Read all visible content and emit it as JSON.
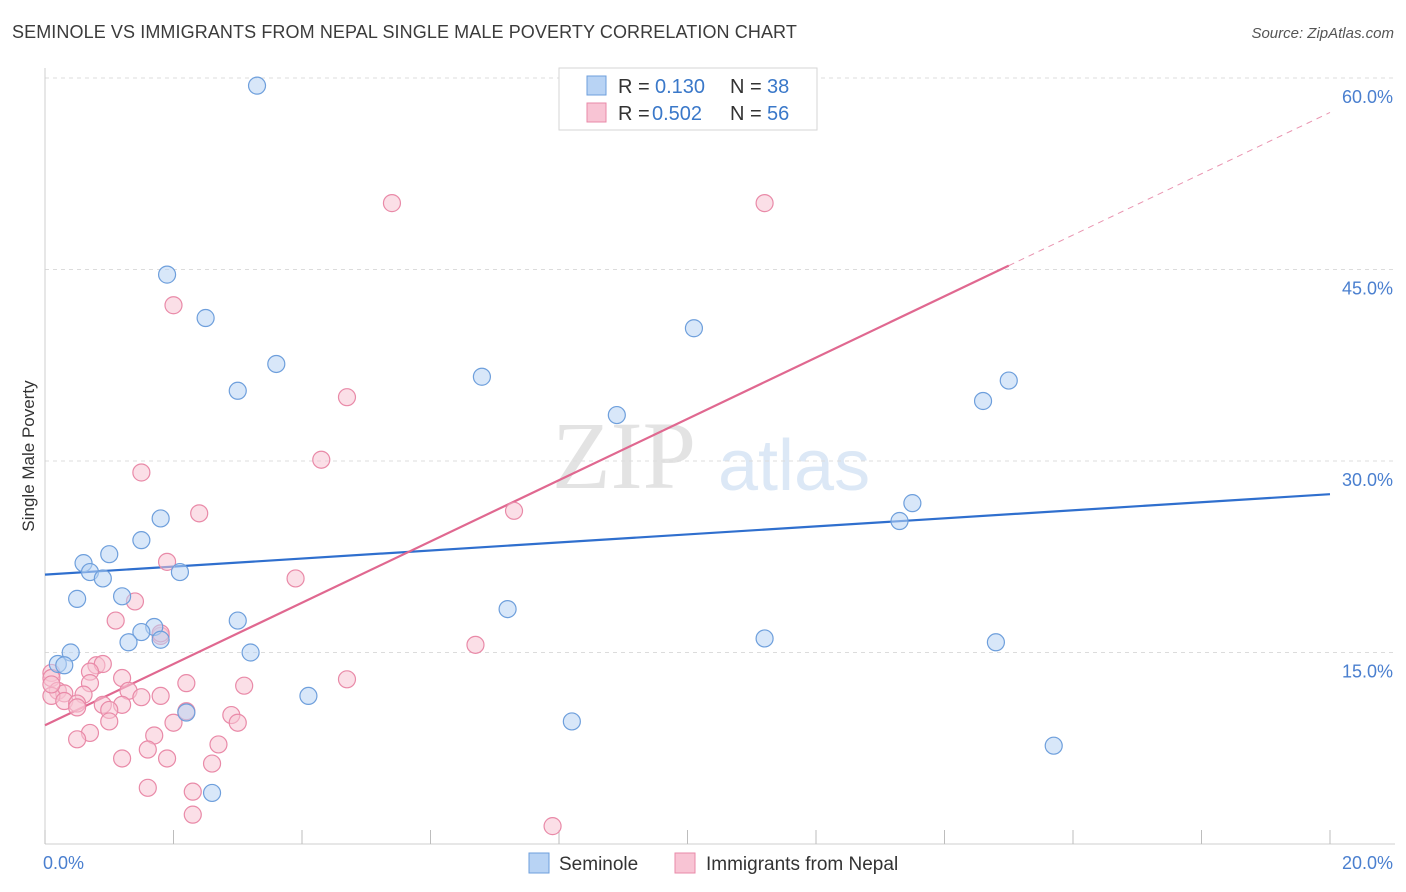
{
  "title": "SEMINOLE VS IMMIGRANTS FROM NEPAL SINGLE MALE POVERTY CORRELATION CHART",
  "source": "Source: ZipAtlas.com",
  "watermark": {
    "part1": "ZIP",
    "part2": "atlas"
  },
  "colors": {
    "seminole_fill": "#b8d3f4",
    "seminole_stroke": "#6e9fdc",
    "seminole_line": "#2f6fce",
    "nepal_fill": "#f8c4d4",
    "nepal_stroke": "#e98aa8",
    "nepal_line": "#e06890",
    "axis_tick": "#4a7fcf",
    "grid": "#dcdcdc"
  },
  "legend": {
    "rows": [
      {
        "r_label": "R =",
        "r_value": "0.130",
        "n_label": "N =",
        "n_value": "38"
      },
      {
        "r_label": "R =",
        "r_value": "0.502",
        "n_label": "N =",
        "n_value": "56"
      }
    ],
    "bottom": [
      "Seminole",
      "Immigrants from Nepal"
    ]
  },
  "chart_data": {
    "type": "scatter",
    "title": "SEMINOLE VS IMMIGRANTS FROM NEPAL SINGLE MALE POVERTY CORRELATION CHART",
    "xlabel": "",
    "ylabel": "Single Male Poverty",
    "xlim": [
      0,
      20
    ],
    "ylim": [
      0,
      60
    ],
    "x_tick_labels": [
      "0.0%",
      "20.0%"
    ],
    "y_ticks": [
      15,
      30,
      45,
      60
    ],
    "y_tick_labels": [
      "15.0%",
      "30.0%",
      "45.0%",
      "60.0%"
    ],
    "grid": true,
    "legend_position": "top-center",
    "series": [
      {
        "name": "Seminole",
        "r": 0.13,
        "n": 38,
        "trend": {
          "x": [
            0,
            20
          ],
          "y": [
            21.1,
            27.4
          ]
        },
        "points": [
          [
            3.3,
            59.4
          ],
          [
            1.9,
            44.6
          ],
          [
            2.5,
            41.2
          ],
          [
            3.6,
            37.6
          ],
          [
            3.0,
            35.5
          ],
          [
            6.8,
            36.6
          ],
          [
            10.1,
            40.4
          ],
          [
            14.6,
            34.7
          ],
          [
            15.0,
            36.3
          ],
          [
            8.9,
            33.6
          ],
          [
            13.5,
            26.7
          ],
          [
            13.3,
            25.3
          ],
          [
            1.8,
            25.5
          ],
          [
            1.5,
            23.8
          ],
          [
            1.0,
            22.7
          ],
          [
            0.6,
            22.0
          ],
          [
            0.7,
            21.3
          ],
          [
            0.9,
            20.8
          ],
          [
            2.1,
            21.3
          ],
          [
            0.5,
            19.2
          ],
          [
            1.2,
            19.4
          ],
          [
            7.2,
            18.4
          ],
          [
            3.0,
            17.5
          ],
          [
            1.7,
            17.0
          ],
          [
            1.5,
            16.6
          ],
          [
            1.3,
            15.8
          ],
          [
            1.8,
            16.0
          ],
          [
            3.2,
            15.0
          ],
          [
            11.2,
            16.1
          ],
          [
            14.8,
            15.8
          ],
          [
            0.4,
            15.0
          ],
          [
            0.2,
            14.1
          ],
          [
            0.3,
            14.0
          ],
          [
            4.1,
            11.6
          ],
          [
            2.2,
            10.3
          ],
          [
            8.2,
            9.6
          ],
          [
            15.7,
            7.7
          ],
          [
            2.6,
            4.0
          ]
        ]
      },
      {
        "name": "Immigrants from Nepal",
        "r": 0.502,
        "n": 56,
        "trend": {
          "x": [
            0,
            15
          ],
          "y": [
            9.3,
            45.3
          ]
        },
        "trend_dashed": {
          "x": [
            15,
            20
          ],
          "y": [
            45.3,
            57.3
          ]
        },
        "points": [
          [
            5.4,
            50.2
          ],
          [
            11.2,
            50.2
          ],
          [
            2.0,
            42.2
          ],
          [
            4.7,
            35.0
          ],
          [
            4.3,
            30.1
          ],
          [
            1.5,
            29.1
          ],
          [
            2.4,
            25.9
          ],
          [
            7.3,
            26.1
          ],
          [
            1.9,
            22.1
          ],
          [
            3.9,
            20.8
          ],
          [
            1.4,
            19.0
          ],
          [
            1.1,
            17.5
          ],
          [
            1.8,
            16.3
          ],
          [
            1.8,
            16.5
          ],
          [
            6.7,
            15.6
          ],
          [
            0.8,
            14.0
          ],
          [
            0.9,
            14.1
          ],
          [
            0.7,
            13.5
          ],
          [
            0.1,
            13.4
          ],
          [
            0.1,
            13.0
          ],
          [
            1.2,
            13.0
          ],
          [
            4.7,
            12.9
          ],
          [
            0.7,
            12.6
          ],
          [
            2.2,
            12.6
          ],
          [
            3.1,
            12.4
          ],
          [
            1.3,
            12.0
          ],
          [
            0.2,
            12.0
          ],
          [
            0.3,
            11.8
          ],
          [
            0.6,
            11.7
          ],
          [
            0.1,
            11.6
          ],
          [
            1.8,
            11.6
          ],
          [
            1.5,
            11.5
          ],
          [
            0.3,
            11.2
          ],
          [
            0.5,
            11.0
          ],
          [
            0.9,
            10.9
          ],
          [
            1.2,
            10.9
          ],
          [
            0.5,
            10.7
          ],
          [
            1.0,
            10.5
          ],
          [
            2.2,
            10.4
          ],
          [
            2.9,
            10.1
          ],
          [
            2.0,
            9.5
          ],
          [
            1.0,
            9.6
          ],
          [
            3.0,
            9.5
          ],
          [
            1.7,
            8.5
          ],
          [
            0.7,
            8.7
          ],
          [
            0.5,
            8.2
          ],
          [
            2.7,
            7.8
          ],
          [
            1.6,
            7.4
          ],
          [
            1.2,
            6.7
          ],
          [
            1.9,
            6.7
          ],
          [
            2.6,
            6.3
          ],
          [
            1.6,
            4.4
          ],
          [
            2.3,
            4.1
          ],
          [
            2.3,
            2.3
          ],
          [
            7.9,
            1.4
          ],
          [
            0.1,
            12.5
          ]
        ]
      }
    ]
  }
}
